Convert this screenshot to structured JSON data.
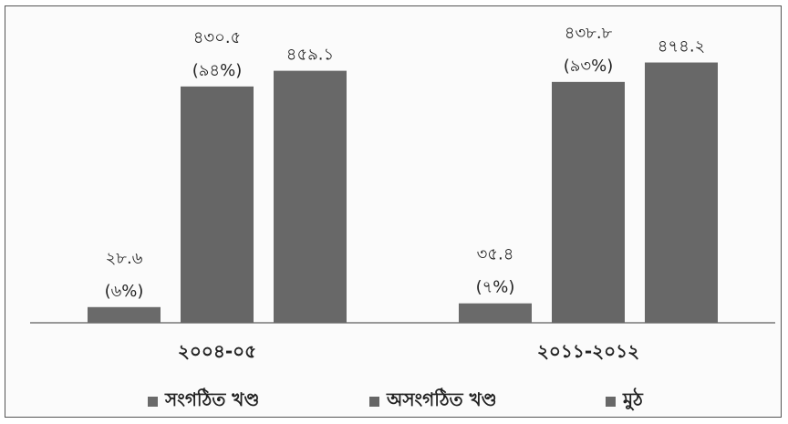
{
  "chart_data": {
    "type": "bar",
    "categories": [
      "২০০৪-০৫",
      "২০১১-২০১২"
    ],
    "series": [
      {
        "name": "সংগঠিত খণ্ড",
        "values": [
          28.6,
          35.4
        ],
        "labels": [
          "২৮.৬",
          "৩৫.৪"
        ],
        "shares": [
          "(৬%)",
          "(৭%)"
        ],
        "color": "#6a6a6a"
      },
      {
        "name": "অসংগঠিত খণ্ড",
        "values": [
          430.5,
          438.8
        ],
        "labels": [
          "৪৩০.৫",
          "৪৩৮.৮"
        ],
        "shares": [
          "(৯৪%)",
          "(৯৩%)"
        ],
        "color": "#666666"
      },
      {
        "name": "মুঠ",
        "values": [
          459.1,
          474.2
        ],
        "labels": [
          "৪৫৯.১",
          "৪৭৪.২"
        ],
        "shares": [
          "",
          ""
        ],
        "color": "#686868"
      }
    ],
    "ylim": [
      0,
      500
    ],
    "legend_position": "bottom",
    "grid": false
  }
}
